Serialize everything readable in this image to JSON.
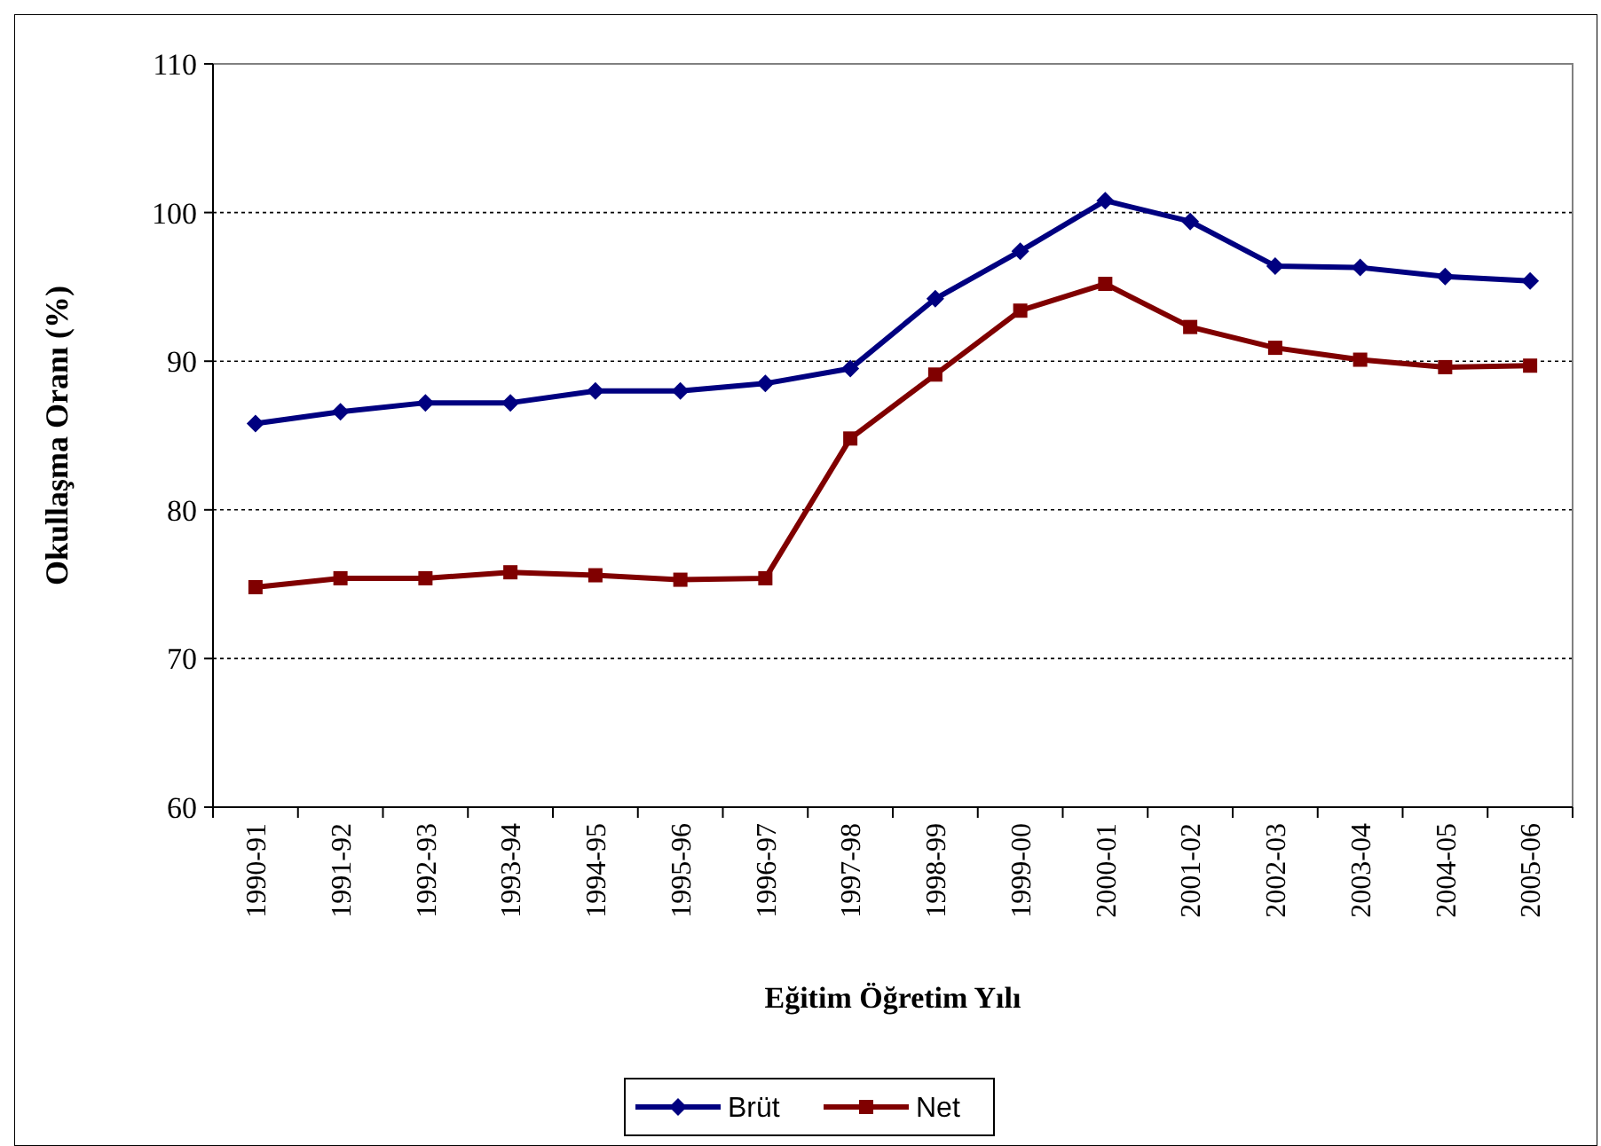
{
  "chart_data": {
    "type": "line",
    "xlabel": "Eğitim Öğretim Yılı",
    "ylabel": "Okullaşma Oranı (%)",
    "categories": [
      "1990-91",
      "1991-92",
      "1992-93",
      "1993-94",
      "1994-95",
      "1995-96",
      "1996-97",
      "1997-98",
      "1998-99",
      "1999-00",
      "2000-01",
      "2001-02",
      "2002-03",
      "2003-04",
      "2004-05",
      "2005-06"
    ],
    "series": [
      {
        "name": "Brüt",
        "color": "#000080",
        "marker": "diamond",
        "values": [
          85.8,
          86.6,
          87.2,
          87.2,
          88.0,
          88.0,
          88.5,
          89.5,
          94.2,
          97.4,
          100.8,
          99.4,
          96.4,
          96.3,
          95.7,
          95.4
        ]
      },
      {
        "name": "Net",
        "color": "#800000",
        "marker": "square",
        "values": [
          74.8,
          75.4,
          75.4,
          75.8,
          75.6,
          75.3,
          75.4,
          84.8,
          89.1,
          93.4,
          95.2,
          92.3,
          90.9,
          90.1,
          89.6,
          89.7
        ]
      }
    ],
    "ylim": [
      60,
      110
    ],
    "yticks": [
      60,
      70,
      80,
      90,
      100,
      110
    ],
    "grid": "y",
    "legend": "bottom",
    "line_style": "solid"
  }
}
